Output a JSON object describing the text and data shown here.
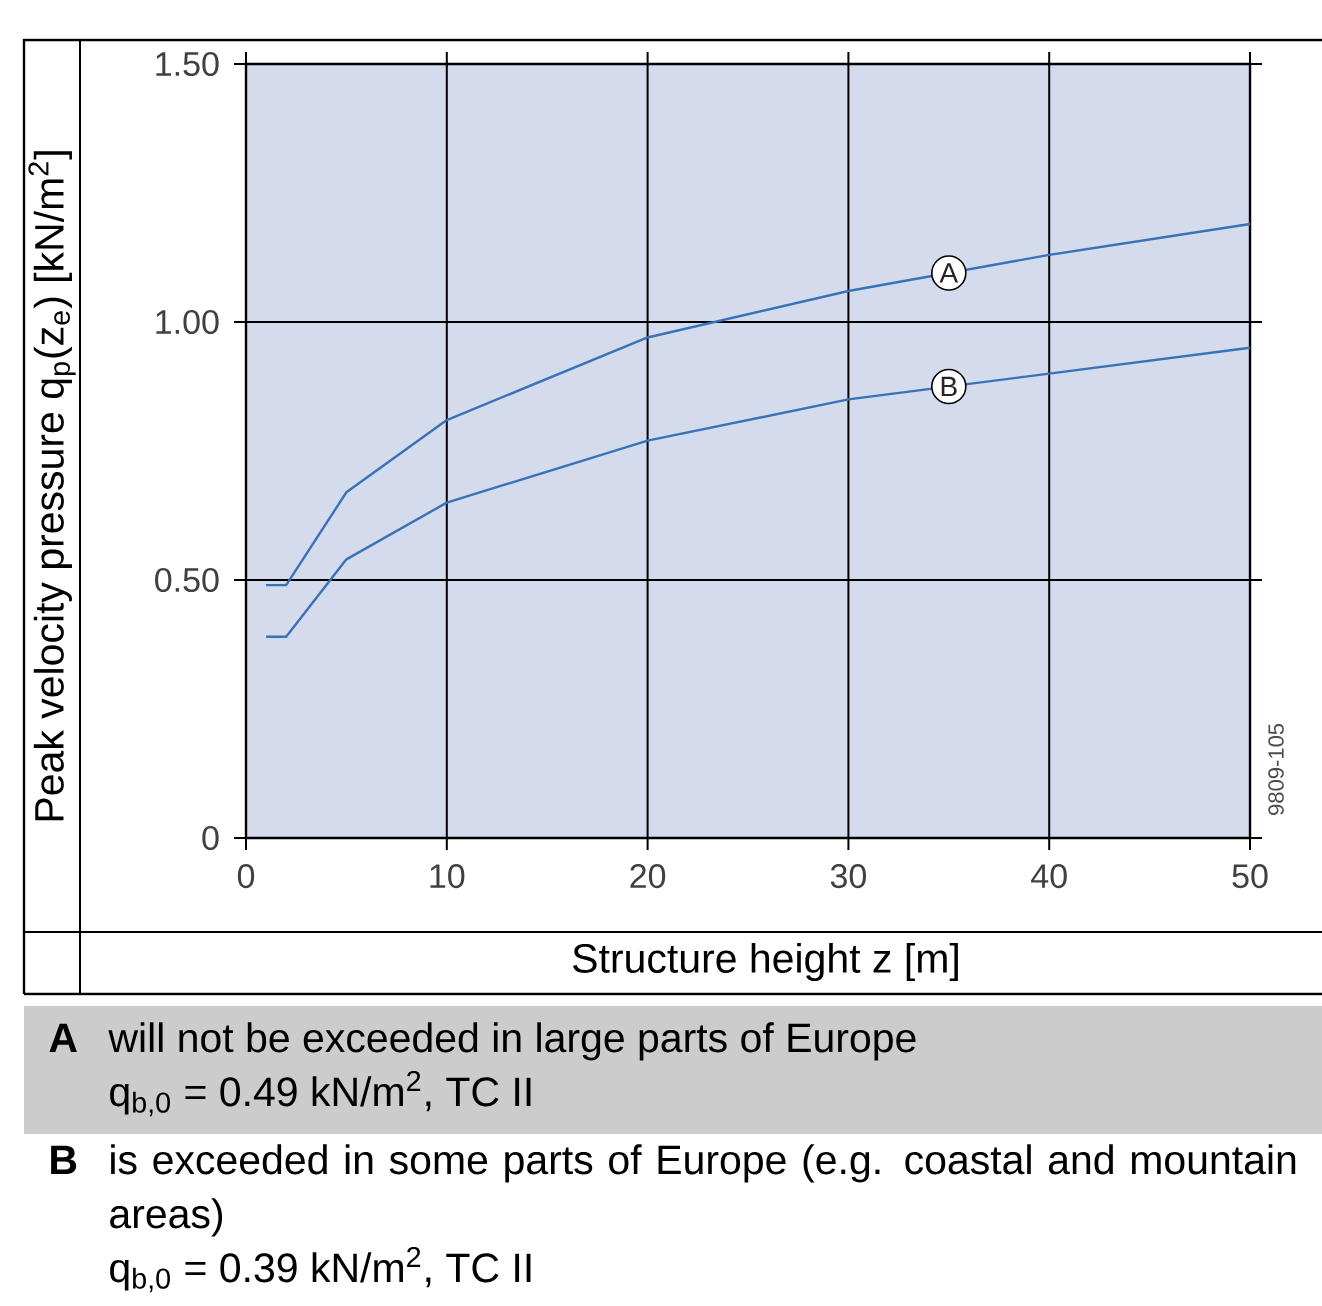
{
  "chart_data": {
    "type": "line",
    "xlabel": "Structure height z [m]",
    "ylabel": "Peak velocity pressure q$_{p}$(z$_{e}$) [kN/m$^{2}$]",
    "xlim": [
      0,
      50
    ],
    "ylim": [
      0,
      1.5
    ],
    "xticks": [
      0,
      10,
      20,
      30,
      40,
      50
    ],
    "yticks": [
      0,
      {
        "value": 0.5,
        "label": "0.50"
      },
      {
        "value": 1.0,
        "label": "1.00"
      },
      {
        "value": 1.5,
        "label": "1.50"
      }
    ],
    "grid": true,
    "marker": "none",
    "line_style": "solid",
    "series": [
      {
        "name": "A",
        "color": "#3a72b8",
        "x": [
          1,
          2,
          5,
          10,
          20,
          30,
          40,
          50
        ],
        "values": [
          0.49,
          0.49,
          0.67,
          0.81,
          0.97,
          1.06,
          1.13,
          1.19
        ]
      },
      {
        "name": "B",
        "color": "#3a72b8",
        "x": [
          1,
          2,
          5,
          10,
          20,
          30,
          40,
          50
        ],
        "values": [
          0.39,
          0.39,
          0.54,
          0.65,
          0.77,
          0.85,
          0.9,
          0.95
        ]
      }
    ],
    "annotations": [
      "9809-105",
      "A",
      "will not be exceeded in large parts of Europe",
      "q$_{b,0}$ = 0.49 kN/m$^{2}$, TC II",
      "B",
      "is exceeded in some parts of Europe (e.g. coastal and mountain areas)",
      "q$_{b,0}$ = 0.39 kN/m$^{2}$, TC II"
    ]
  }
}
